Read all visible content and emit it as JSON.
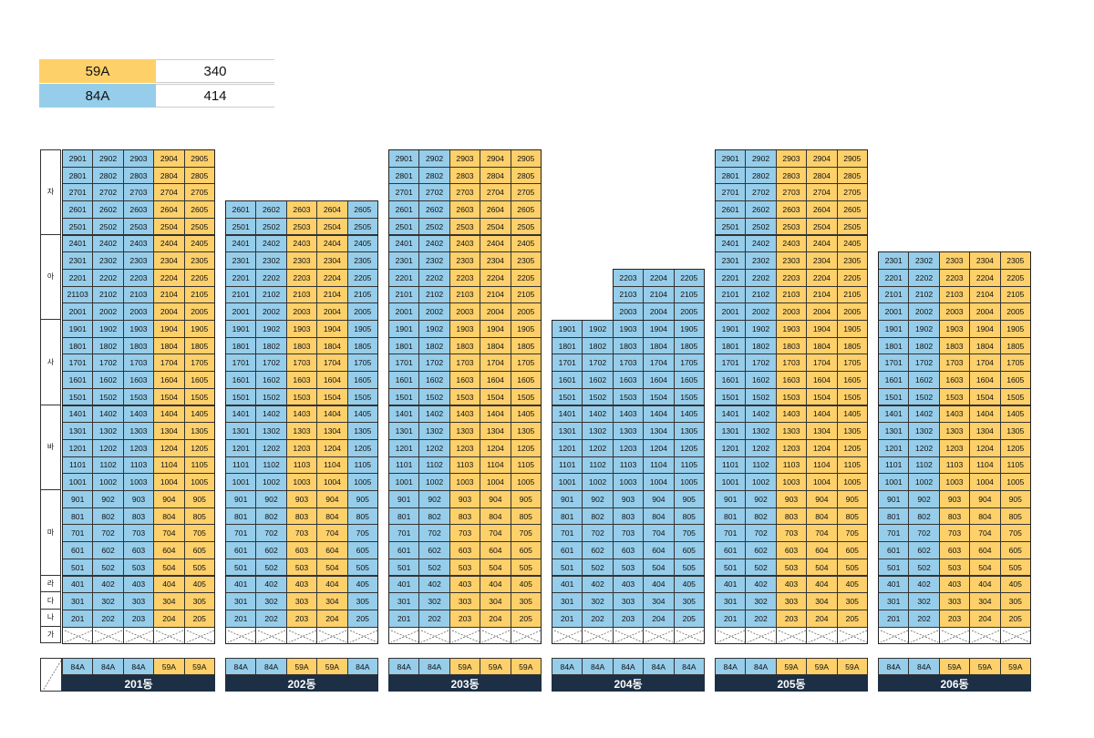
{
  "colors": {
    "type_59A": "#fdd06a",
    "type_84A": "#96cdea",
    "footer_bg": "#1c2f45"
  },
  "legend": [
    {
      "type": "59A",
      "count": "340"
    },
    {
      "type": "84A",
      "count": "414"
    }
  ],
  "floor_bands": [
    {
      "label": "자",
      "floors": [
        29,
        25
      ]
    },
    {
      "label": "아",
      "floors": [
        24,
        20
      ]
    },
    {
      "label": "사",
      "floors": [
        19,
        15
      ]
    },
    {
      "label": "바",
      "floors": [
        14,
        10
      ]
    },
    {
      "label": "마",
      "floors": [
        9,
        5
      ]
    },
    {
      "label": "라",
      "floors": [
        4,
        4
      ]
    },
    {
      "label": "다",
      "floors": [
        3,
        3
      ]
    },
    {
      "label": "나",
      "floors": [
        2,
        2
      ]
    },
    {
      "label": "가",
      "floors": [
        1,
        1
      ]
    }
  ],
  "buildings": [
    {
      "name": "201동",
      "top_floor": 29,
      "first_line": 1,
      "types": [
        "84A",
        "84A",
        "84A",
        "59A",
        "59A"
      ],
      "overrides": {
        "2101": "21103"
      }
    },
    {
      "name": "202동",
      "top_floor": 26,
      "first_line": 1,
      "types": [
        "84A",
        "84A",
        "59A",
        "59A",
        "84A"
      ],
      "overrides": {}
    },
    {
      "name": "203동",
      "top_floor": 29,
      "first_line": 1,
      "types": [
        "84A",
        "84A",
        "59A",
        "59A",
        "59A"
      ],
      "overrides": {}
    },
    {
      "name": "204동",
      "top_floor": 19,
      "first_line": 1,
      "types": [
        "84A",
        "84A",
        "84A",
        "84A",
        "84A"
      ],
      "overrides": {},
      "upper": {
        "from_floor": 20,
        "to_floor": 22,
        "first_line": 3
      }
    },
    {
      "name": "205동",
      "top_floor": 29,
      "first_line": 1,
      "types": [
        "84A",
        "84A",
        "59A",
        "59A",
        "59A"
      ],
      "overrides": {}
    },
    {
      "name": "206동",
      "top_floor": 23,
      "first_line": 1,
      "types": [
        "84A",
        "84A",
        "59A",
        "59A",
        "59A"
      ],
      "overrides": {}
    }
  ]
}
